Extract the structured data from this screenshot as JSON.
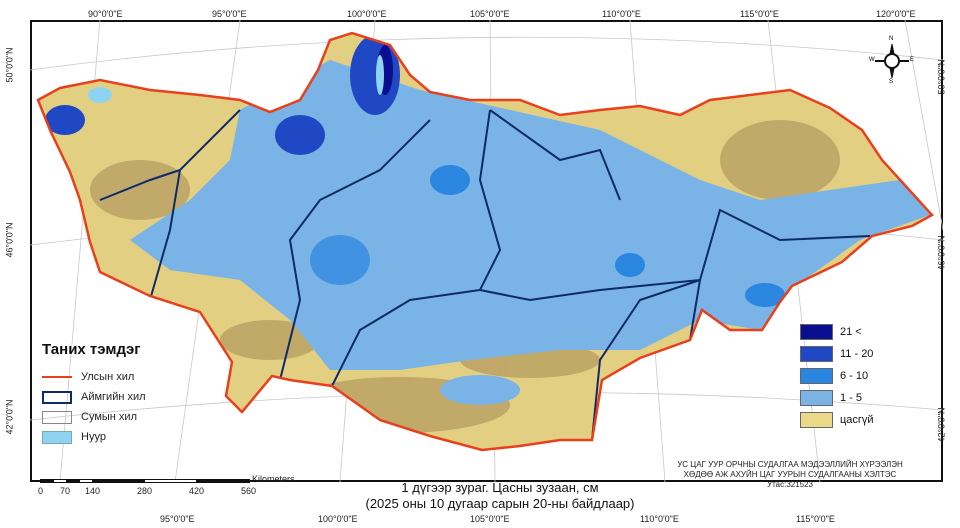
{
  "map": {
    "top_lon_labels": [
      "90°0'0\"E",
      "95°0'0\"E",
      "100°0'0\"E",
      "105°0'0\"E",
      "110°0'0\"E",
      "115°0'0\"E",
      "120°0'0\"E"
    ],
    "bottom_lon_labels": [
      "95°0'0\"E",
      "100°0'0\"E",
      "105°0'0\"E",
      "110°0'0\"E",
      "115°0'0\"E"
    ],
    "left_lat_labels": [
      "50°0'0\"N",
      "46°0'0\"N",
      "42°0'0\"N"
    ],
    "right_lat_labels": [
      "50°0'0\"N",
      "46°0'0\"N",
      "42°0'0\"N"
    ],
    "compass": {
      "n": "N",
      "s": "S",
      "e": "E",
      "w": "W"
    }
  },
  "legend": {
    "title": "Таних тэмдэг",
    "items": [
      {
        "label": "Улсын хил",
        "color": "#e8401c"
      },
      {
        "label": "Аймгийн хил",
        "color": "#0d2a6b"
      },
      {
        "label": "Сумын хил",
        "color": "#888888"
      },
      {
        "label": "Нуур",
        "color": "#8fd3f2"
      }
    ]
  },
  "classes": [
    {
      "label": "21 <",
      "color": "#0a0f8f"
    },
    {
      "label": "11 - 20",
      "color": "#2148c4"
    },
    {
      "label": "6 - 10",
      "color": "#2a86de"
    },
    {
      "label": "1 - 5",
      "color": "#7ab3e6"
    },
    {
      "label": "цасгүй",
      "color": "#ecd987"
    }
  ],
  "scale": {
    "unit": "Kilometers",
    "ticks": [
      "0",
      "70",
      "140",
      "280",
      "420",
      "560"
    ]
  },
  "title": {
    "line1": "1 дүгээр зураг. Цасны зузаан, см",
    "line2": "(2025 оны 10 дугаар сарын 20-ны байдлаар)"
  },
  "credit": {
    "line1": "УС ЦАГ УУР ОРЧНЫ СУДАЛГАА МЭДЭЭЛЛИЙН ХҮРЭЭЛЭН",
    "line2": "ХӨДӨӨ АЖ АХУЙН ЦАГ УУРЫН СУДАЛГААНЫ ХЭЛТЭС",
    "line3": "Утас:321523"
  }
}
